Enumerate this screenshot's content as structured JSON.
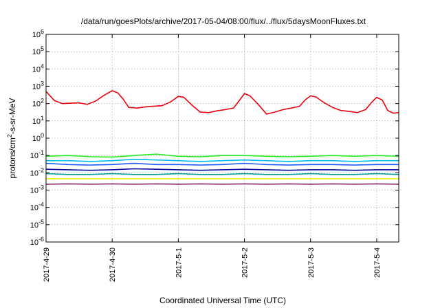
{
  "chart_data": {
    "type": "line",
    "title": "/data/run/goesPlots/archive/2017-05-04/08:00/flux/../flux/5daysMoonFluxes.txt",
    "xlabel": "Coordinated Universal Time (UTC)",
    "ylabel_parts": {
      "base": "protons/cm",
      "sup": "2",
      "rest": "-s-sr-MeV"
    },
    "yscale": "log",
    "ylim": [
      1e-06,
      1000000.0
    ],
    "y_ticks": [
      {
        "value": 1e-06,
        "base": "10",
        "exp": "-6"
      },
      {
        "value": 1e-05,
        "base": "10",
        "exp": "-5"
      },
      {
        "value": 0.0001,
        "base": "10",
        "exp": "-4"
      },
      {
        "value": 0.001,
        "base": "10",
        "exp": "-3"
      },
      {
        "value": 0.01,
        "base": "10",
        "exp": "-2"
      },
      {
        "value": 0.1,
        "base": "10",
        "exp": "-1"
      },
      {
        "value": 1,
        "base": "10",
        "exp": "0"
      },
      {
        "value": 10,
        "base": "10",
        "exp": "1"
      },
      {
        "value": 100,
        "base": "10",
        "exp": "2"
      },
      {
        "value": 1000,
        "base": "10",
        "exp": "3"
      },
      {
        "value": 10000,
        "base": "10",
        "exp": "4"
      },
      {
        "value": 100000,
        "base": "10",
        "exp": "5"
      },
      {
        "value": 1000000,
        "base": "10",
        "exp": "6"
      }
    ],
    "xlim": [
      "2017-04-29T00:00",
      "2017-05-04T08:00"
    ],
    "x_ticks": [
      {
        "date": "2017-04-29T00:00",
        "label": "2017-4-29"
      },
      {
        "date": "2017-04-30T00:00",
        "label": "2017-4-30"
      },
      {
        "date": "2017-05-01T00:00",
        "label": "2017-5-1"
      },
      {
        "date": "2017-05-02T00:00",
        "label": "2017-5-2"
      },
      {
        "date": "2017-05-03T00:00",
        "label": "2017-5-3"
      },
      {
        "date": "2017-05-04T00:00",
        "label": "2017-5-4"
      }
    ],
    "grid": true,
    "series": [
      {
        "color": "#e8000b",
        "points": [
          [
            "2017-04-29T00:00",
            500
          ],
          [
            "2017-04-29T03:00",
            150
          ],
          [
            "2017-04-29T06:00",
            100
          ],
          [
            "2017-04-29T09:00",
            105
          ],
          [
            "2017-04-29T12:00",
            110
          ],
          [
            "2017-04-29T15:00",
            90
          ],
          [
            "2017-04-29T18:00",
            140
          ],
          [
            "2017-04-29T21:00",
            300
          ],
          [
            "2017-04-30T00:00",
            550
          ],
          [
            "2017-04-30T02:00",
            420
          ],
          [
            "2017-04-30T04:00",
            180
          ],
          [
            "2017-04-30T06:00",
            60
          ],
          [
            "2017-04-30T09:00",
            55
          ],
          [
            "2017-04-30T12:00",
            65
          ],
          [
            "2017-04-30T15:00",
            70
          ],
          [
            "2017-04-30T18:00",
            75
          ],
          [
            "2017-04-30T21:00",
            120
          ],
          [
            "2017-05-01T00:00",
            260
          ],
          [
            "2017-05-01T02:00",
            230
          ],
          [
            "2017-05-01T05:00",
            80
          ],
          [
            "2017-05-01T08:00",
            32
          ],
          [
            "2017-05-01T11:00",
            30
          ],
          [
            "2017-05-01T14:00",
            38
          ],
          [
            "2017-05-01T17:00",
            45
          ],
          [
            "2017-05-01T20:00",
            55
          ],
          [
            "2017-05-01T22:00",
            140
          ],
          [
            "2017-05-02T00:00",
            380
          ],
          [
            "2017-05-02T02:00",
            280
          ],
          [
            "2017-05-02T05:00",
            90
          ],
          [
            "2017-05-02T08:00",
            25
          ],
          [
            "2017-05-02T11:00",
            32
          ],
          [
            "2017-05-02T14:00",
            45
          ],
          [
            "2017-05-02T17:00",
            55
          ],
          [
            "2017-05-02T20:00",
            70
          ],
          [
            "2017-05-02T22:00",
            160
          ],
          [
            "2017-05-03T00:00",
            280
          ],
          [
            "2017-05-03T02:00",
            240
          ],
          [
            "2017-05-03T05:00",
            110
          ],
          [
            "2017-05-03T08:00",
            60
          ],
          [
            "2017-05-03T11:00",
            40
          ],
          [
            "2017-05-03T14:00",
            35
          ],
          [
            "2017-05-03T17:00",
            30
          ],
          [
            "2017-05-03T20:00",
            45
          ],
          [
            "2017-05-03T22:00",
            110
          ],
          [
            "2017-05-04T00:00",
            230
          ],
          [
            "2017-05-04T02:00",
            160
          ],
          [
            "2017-05-04T04:00",
            40
          ],
          [
            "2017-05-04T06:00",
            28
          ],
          [
            "2017-05-04T08:00",
            30
          ]
        ]
      },
      {
        "color": "#22ee22",
        "points": [
          [
            "2017-04-29T00:00",
            0.09
          ],
          [
            "2017-04-29T08:00",
            0.1
          ],
          [
            "2017-04-29T16:00",
            0.085
          ],
          [
            "2017-04-30T00:00",
            0.08
          ],
          [
            "2017-04-30T08:00",
            0.1
          ],
          [
            "2017-04-30T16:00",
            0.12
          ],
          [
            "2017-05-01T00:00",
            0.09
          ],
          [
            "2017-05-01T08:00",
            0.085
          ],
          [
            "2017-05-01T16:00",
            0.1
          ],
          [
            "2017-05-02T00:00",
            0.1
          ],
          [
            "2017-05-02T08:00",
            0.09
          ],
          [
            "2017-05-02T16:00",
            0.085
          ],
          [
            "2017-05-03T00:00",
            0.09
          ],
          [
            "2017-05-03T08:00",
            0.1
          ],
          [
            "2017-05-03T16:00",
            0.09
          ],
          [
            "2017-05-04T00:00",
            0.1
          ],
          [
            "2017-05-04T08:00",
            0.09
          ]
        ]
      },
      {
        "color": "#00bbee",
        "points": [
          [
            "2017-04-29T00:00",
            0.05
          ],
          [
            "2017-04-29T08:00",
            0.05
          ],
          [
            "2017-04-29T16:00",
            0.045
          ],
          [
            "2017-04-30T00:00",
            0.05
          ],
          [
            "2017-04-30T08:00",
            0.06
          ],
          [
            "2017-04-30T16:00",
            0.055
          ],
          [
            "2017-05-01T00:00",
            0.05
          ],
          [
            "2017-05-01T08:00",
            0.045
          ],
          [
            "2017-05-01T16:00",
            0.05
          ],
          [
            "2017-05-02T00:00",
            0.055
          ],
          [
            "2017-05-02T08:00",
            0.05
          ],
          [
            "2017-05-02T16:00",
            0.045
          ],
          [
            "2017-05-03T00:00",
            0.05
          ],
          [
            "2017-05-03T08:00",
            0.05
          ],
          [
            "2017-05-03T16:00",
            0.045
          ],
          [
            "2017-05-04T00:00",
            0.05
          ],
          [
            "2017-05-04T08:00",
            0.05
          ]
        ]
      },
      {
        "color": "#1e5cff",
        "points": [
          [
            "2017-04-29T00:00",
            0.035
          ],
          [
            "2017-04-29T08:00",
            0.03
          ],
          [
            "2017-04-29T16:00",
            0.028
          ],
          [
            "2017-04-30T00:00",
            0.03
          ],
          [
            "2017-04-30T08:00",
            0.035
          ],
          [
            "2017-04-30T16:00",
            0.03
          ],
          [
            "2017-05-01T00:00",
            0.03
          ],
          [
            "2017-05-01T08:00",
            0.028
          ],
          [
            "2017-05-01T16:00",
            0.03
          ],
          [
            "2017-05-02T00:00",
            0.035
          ],
          [
            "2017-05-02T08:00",
            0.03
          ],
          [
            "2017-05-02T16:00",
            0.028
          ],
          [
            "2017-05-03T00:00",
            0.03
          ],
          [
            "2017-05-03T08:00",
            0.03
          ],
          [
            "2017-05-03T16:00",
            0.028
          ],
          [
            "2017-05-04T00:00",
            0.03
          ],
          [
            "2017-05-04T08:00",
            0.03
          ]
        ]
      },
      {
        "color": "#00009b",
        "points": [
          [
            "2017-04-29T00:00",
            0.016
          ],
          [
            "2017-04-29T08:00",
            0.015
          ],
          [
            "2017-04-29T16:00",
            0.014
          ],
          [
            "2017-04-30T00:00",
            0.015
          ],
          [
            "2017-04-30T08:00",
            0.017
          ],
          [
            "2017-04-30T16:00",
            0.016
          ],
          [
            "2017-05-01T00:00",
            0.015
          ],
          [
            "2017-05-01T08:00",
            0.014
          ],
          [
            "2017-05-01T16:00",
            0.015
          ],
          [
            "2017-05-02T00:00",
            0.016
          ],
          [
            "2017-05-02T08:00",
            0.015
          ],
          [
            "2017-05-02T16:00",
            0.014
          ],
          [
            "2017-05-03T00:00",
            0.015
          ],
          [
            "2017-05-03T08:00",
            0.015
          ],
          [
            "2017-05-03T16:00",
            0.014
          ],
          [
            "2017-05-04T00:00",
            0.015
          ],
          [
            "2017-05-04T08:00",
            0.015
          ]
        ]
      },
      {
        "color": "#009999",
        "points": [
          [
            "2017-04-29T00:00",
            0.009
          ],
          [
            "2017-04-29T08:00",
            0.008
          ],
          [
            "2017-04-29T16:00",
            0.008
          ],
          [
            "2017-04-30T00:00",
            0.009
          ],
          [
            "2017-04-30T08:00",
            0.008
          ],
          [
            "2017-04-30T16:00",
            0.008
          ],
          [
            "2017-05-01T00:00",
            0.009
          ],
          [
            "2017-05-01T08:00",
            0.008
          ],
          [
            "2017-05-01T16:00",
            0.008
          ],
          [
            "2017-05-02T00:00",
            0.009
          ],
          [
            "2017-05-02T08:00",
            0.008
          ],
          [
            "2017-05-02T16:00",
            0.008
          ],
          [
            "2017-05-03T00:00",
            0.009
          ],
          [
            "2017-05-03T08:00",
            0.008
          ],
          [
            "2017-05-03T16:00",
            0.008
          ],
          [
            "2017-05-04T00:00",
            0.009
          ],
          [
            "2017-05-04T08:00",
            0.008
          ]
        ]
      },
      {
        "color": "#eeee00",
        "points": [
          [
            "2017-04-29T00:00",
            0.0045
          ],
          [
            "2017-04-29T12:00",
            0.0045
          ],
          [
            "2017-04-30T00:00",
            0.0045
          ],
          [
            "2017-04-30T12:00",
            0.0045
          ],
          [
            "2017-05-01T00:00",
            0.0045
          ],
          [
            "2017-05-01T12:00",
            0.0045
          ],
          [
            "2017-05-02T00:00",
            0.0045
          ],
          [
            "2017-05-02T12:00",
            0.0045
          ],
          [
            "2017-05-03T00:00",
            0.0045
          ],
          [
            "2017-05-03T12:00",
            0.0045
          ],
          [
            "2017-05-04T00:00",
            0.0045
          ],
          [
            "2017-05-04T08:00",
            0.0045
          ]
        ]
      },
      {
        "color": "#8b2e6f",
        "points": [
          [
            "2017-04-29T00:00",
            0.0022
          ],
          [
            "2017-04-29T08:00",
            0.0023
          ],
          [
            "2017-04-29T16:00",
            0.0022
          ],
          [
            "2017-04-30T00:00",
            0.0023
          ],
          [
            "2017-04-30T08:00",
            0.0022
          ],
          [
            "2017-04-30T16:00",
            0.0023
          ],
          [
            "2017-05-01T00:00",
            0.0022
          ],
          [
            "2017-05-01T08:00",
            0.0023
          ],
          [
            "2017-05-01T16:00",
            0.0022
          ],
          [
            "2017-05-02T00:00",
            0.0023
          ],
          [
            "2017-05-02T08:00",
            0.0022
          ],
          [
            "2017-05-02T16:00",
            0.0023
          ],
          [
            "2017-05-03T00:00",
            0.0022
          ],
          [
            "2017-05-03T08:00",
            0.0023
          ],
          [
            "2017-05-03T16:00",
            0.0022
          ],
          [
            "2017-05-04T00:00",
            0.0023
          ],
          [
            "2017-05-04T08:00",
            0.0022
          ]
        ]
      }
    ]
  }
}
